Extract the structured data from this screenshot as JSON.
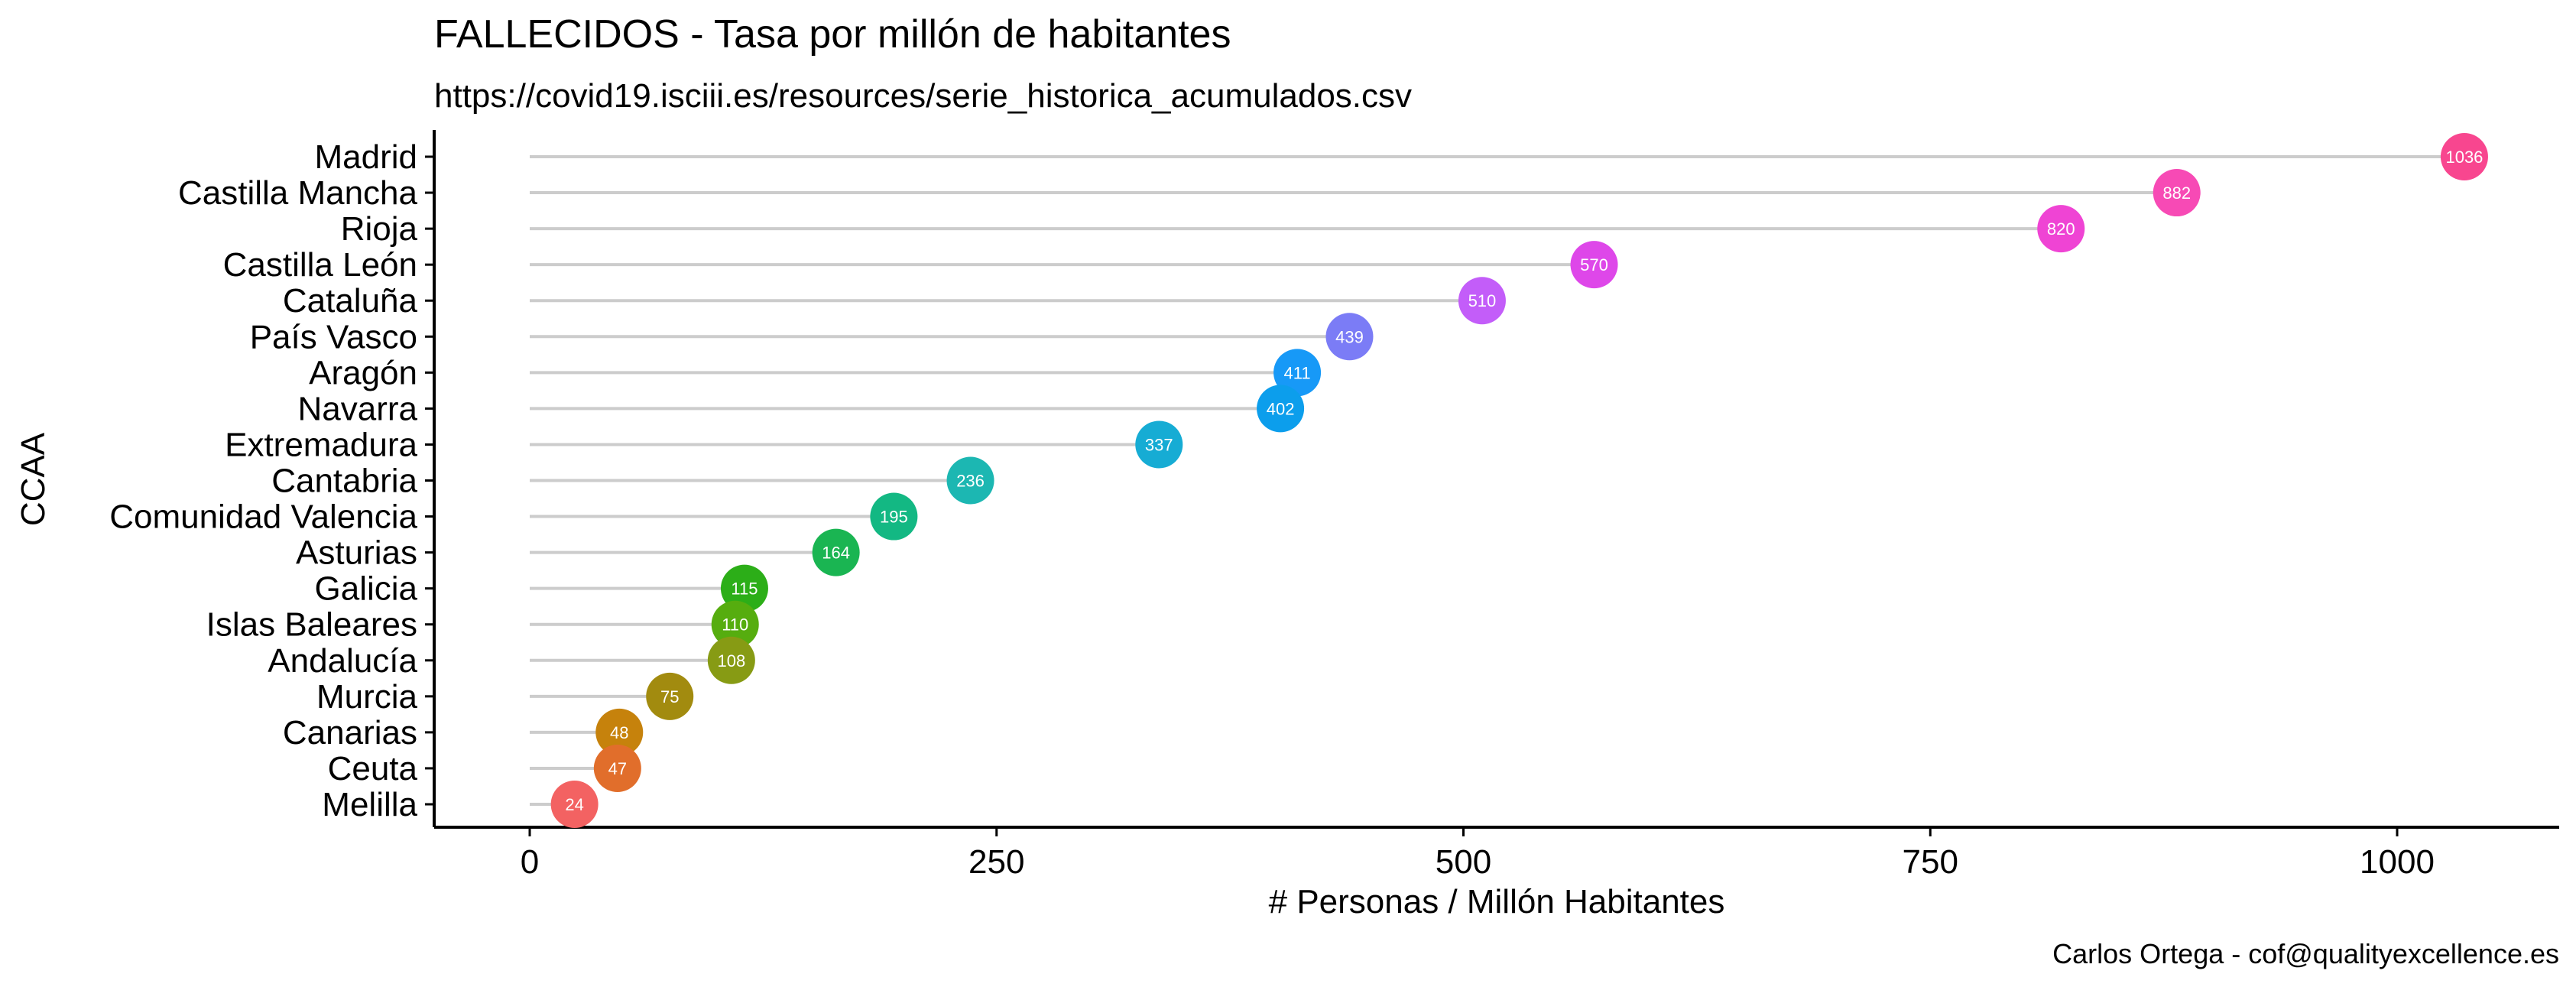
{
  "chart_data": {
    "type": "lollipop",
    "title": "FALLECIDOS - Tasa por millón de habitantes",
    "subtitle": "https://covid19.isciii.es/resources/serie_historica_acumulados.csv",
    "xlabel": "# Personas / Millón Habitantes",
    "ylabel": "CCAA",
    "caption": "Carlos Ortega - cof@qualityexcellence.es",
    "xlim": [
      -50,
      1080
    ],
    "x_ticks": [
      0,
      250,
      500,
      750,
      1000
    ],
    "grid": false,
    "legend": "none",
    "categories": [
      "Madrid",
      "Castilla Mancha",
      "Rioja",
      "Castilla León",
      "Cataluña",
      "País Vasco",
      "Aragón",
      "Navarra",
      "Extremadura",
      "Cantabria",
      "Comunidad Valencia",
      "Asturias",
      "Galicia",
      "Islas Baleares",
      "Andalucía",
      "Murcia",
      "Canarias",
      "Ceuta",
      "Melilla"
    ],
    "values": [
      1036,
      882,
      820,
      570,
      510,
      439,
      411,
      402,
      337,
      236,
      195,
      164,
      115,
      110,
      108,
      75,
      48,
      47,
      24
    ],
    "colors": [
      "#F8468F",
      "#F74AB5",
      "#EF44D4",
      "#DE47E9",
      "#C35DF9",
      "#7B7CF6",
      "#1799F7",
      "#0C9EEC",
      "#16ACD4",
      "#1CB7B2",
      "#13B883",
      "#1AB552",
      "#2CAE18",
      "#56AD0F",
      "#879B14",
      "#A28B0F",
      "#C6820C",
      "#E16E2B",
      "#F36262"
    ]
  }
}
